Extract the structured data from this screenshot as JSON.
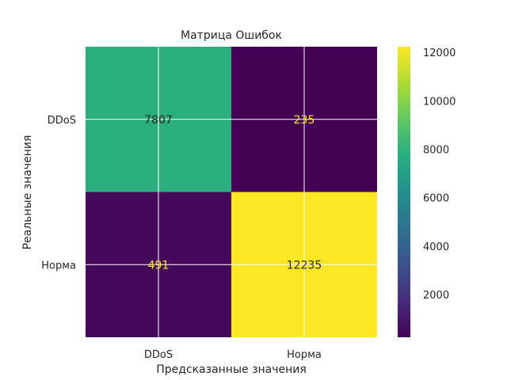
{
  "chart_data": {
    "type": "heatmap",
    "title": "Матрица Ошибок",
    "xlabel": "Предсказанные значения",
    "ylabel": "Реальные значения",
    "x_categories": [
      "DDoS",
      "Норма"
    ],
    "y_categories": [
      "DDoS",
      "Норма"
    ],
    "values": [
      [
        7807,
        235
      ],
      [
        491,
        12235
      ]
    ],
    "colormap": "viridis",
    "colorbar": {
      "range": [
        235,
        12235
      ],
      "ticks": [
        2000,
        4000,
        6000,
        8000,
        10000,
        12000
      ]
    },
    "grid": true,
    "text_colors": {
      "on_light": "#262626",
      "on_dark": "#fde725"
    }
  }
}
